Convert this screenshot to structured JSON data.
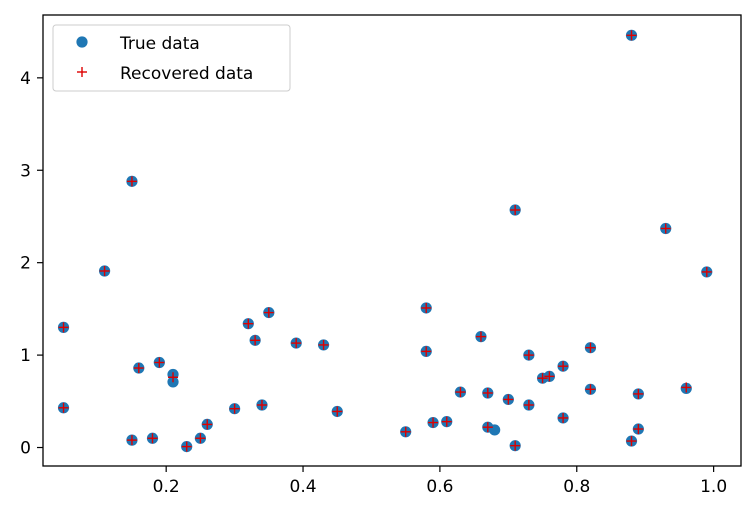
{
  "chart_data": {
    "type": "scatter",
    "xlim": [
      0.02,
      1.04
    ],
    "ylim": [
      -0.2,
      4.68
    ],
    "x_ticks": [
      0.2,
      0.4,
      0.6,
      0.8,
      1.0
    ],
    "x_tick_labels": [
      "0.2",
      "0.4",
      "0.6",
      "0.8",
      "1.0"
    ],
    "y_ticks": [
      0,
      1,
      2,
      3,
      4
    ],
    "y_tick_labels": [
      "0",
      "1",
      "2",
      "3",
      "4"
    ],
    "grid": false,
    "legend_position": "top-left",
    "series": [
      {
        "name": "True data",
        "marker": "circle",
        "color": "#1f77b4",
        "points": [
          [
            0.05,
            1.3
          ],
          [
            0.05,
            0.43
          ],
          [
            0.11,
            1.91
          ],
          [
            0.15,
            2.88
          ],
          [
            0.16,
            0.86
          ],
          [
            0.15,
            0.08
          ],
          [
            0.18,
            0.1
          ],
          [
            0.19,
            0.92
          ],
          [
            0.21,
            0.79
          ],
          [
            0.21,
            0.71
          ],
          [
            0.23,
            0.01
          ],
          [
            0.25,
            0.1
          ],
          [
            0.26,
            0.25
          ],
          [
            0.3,
            0.42
          ],
          [
            0.32,
            1.34
          ],
          [
            0.33,
            1.16
          ],
          [
            0.34,
            0.46
          ],
          [
            0.35,
            1.46
          ],
          [
            0.39,
            1.13
          ],
          [
            0.43,
            1.11
          ],
          [
            0.45,
            0.39
          ],
          [
            0.55,
            0.17
          ],
          [
            0.58,
            1.51
          ],
          [
            0.58,
            1.04
          ],
          [
            0.59,
            0.27
          ],
          [
            0.61,
            0.28
          ],
          [
            0.63,
            0.6
          ],
          [
            0.66,
            1.2
          ],
          [
            0.67,
            0.59
          ],
          [
            0.67,
            0.22
          ],
          [
            0.68,
            0.19
          ],
          [
            0.7,
            0.52
          ],
          [
            0.71,
            2.57
          ],
          [
            0.71,
            0.02
          ],
          [
            0.73,
            1.0
          ],
          [
            0.73,
            0.46
          ],
          [
            0.75,
            0.75
          ],
          [
            0.76,
            0.77
          ],
          [
            0.78,
            0.88
          ],
          [
            0.78,
            0.32
          ],
          [
            0.82,
            1.08
          ],
          [
            0.82,
            0.63
          ],
          [
            0.88,
            4.46
          ],
          [
            0.89,
            0.58
          ],
          [
            0.88,
            0.07
          ],
          [
            0.89,
            0.2
          ],
          [
            0.93,
            2.37
          ],
          [
            0.96,
            0.64
          ],
          [
            0.99,
            1.9
          ]
        ]
      },
      {
        "name": "Recovered data",
        "marker": "plus",
        "color": "#dd0000",
        "points": [
          [
            0.05,
            1.3
          ],
          [
            0.05,
            0.43
          ],
          [
            0.11,
            1.91
          ],
          [
            0.15,
            2.88
          ],
          [
            0.16,
            0.86
          ],
          [
            0.15,
            0.08
          ],
          [
            0.18,
            0.1
          ],
          [
            0.19,
            0.92
          ],
          [
            0.21,
            0.76
          ],
          [
            0.23,
            0.01
          ],
          [
            0.25,
            0.1
          ],
          [
            0.26,
            0.25
          ],
          [
            0.3,
            0.42
          ],
          [
            0.32,
            1.34
          ],
          [
            0.33,
            1.16
          ],
          [
            0.34,
            0.46
          ],
          [
            0.35,
            1.46
          ],
          [
            0.39,
            1.13
          ],
          [
            0.43,
            1.11
          ],
          [
            0.45,
            0.39
          ],
          [
            0.55,
            0.17
          ],
          [
            0.58,
            1.51
          ],
          [
            0.58,
            1.04
          ],
          [
            0.59,
            0.27
          ],
          [
            0.61,
            0.28
          ],
          [
            0.63,
            0.6
          ],
          [
            0.66,
            1.2
          ],
          [
            0.67,
            0.59
          ],
          [
            0.67,
            0.22
          ],
          [
            0.7,
            0.52
          ],
          [
            0.71,
            2.57
          ],
          [
            0.71,
            0.02
          ],
          [
            0.73,
            1.0
          ],
          [
            0.73,
            0.46
          ],
          [
            0.75,
            0.75
          ],
          [
            0.76,
            0.77
          ],
          [
            0.78,
            0.88
          ],
          [
            0.78,
            0.32
          ],
          [
            0.82,
            1.08
          ],
          [
            0.82,
            0.63
          ],
          [
            0.88,
            4.46
          ],
          [
            0.89,
            0.58
          ],
          [
            0.88,
            0.07
          ],
          [
            0.89,
            0.2
          ],
          [
            0.93,
            2.37
          ],
          [
            0.96,
            0.65
          ],
          [
            0.99,
            1.9
          ]
        ]
      }
    ]
  }
}
